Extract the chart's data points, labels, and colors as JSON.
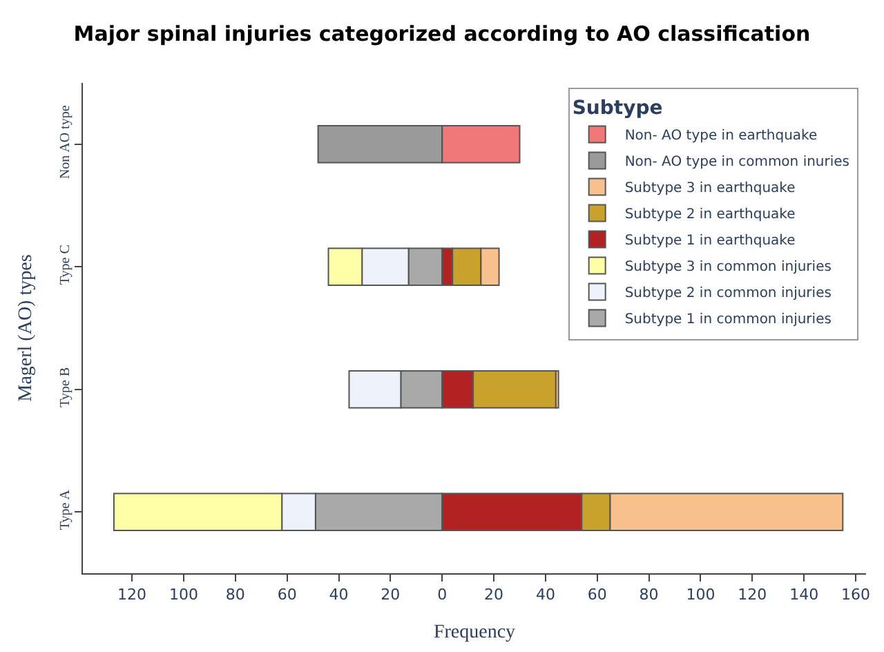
{
  "chart_data": {
    "type": "bar",
    "orientation": "horizontal",
    "stacked": true,
    "title": "Major spinal injuries categorized according to AO classification",
    "xlabel": "Frequency",
    "ylabel": "Magerl (AO) types",
    "legend_title": "Subtype",
    "legend": "top right",
    "categories": [
      "Non AO type",
      "Type C",
      "Type B",
      "Type A"
    ],
    "series": [
      {
        "name": "Subtype 1 in common injuries",
        "color": "#a9a9a9",
        "values": [
          null,
          -13,
          -16,
          -49
        ]
      },
      {
        "name": "Subtype 2 in common injuries",
        "color": "#eef2fb",
        "values": [
          null,
          -18,
          -20,
          -13
        ]
      },
      {
        "name": "Subtype 3 in common injuries",
        "color": "#ffffa8",
        "values": [
          null,
          -13,
          null,
          -65
        ]
      },
      {
        "name": "Subtype 1 in earthquake",
        "color": "#b22222",
        "values": [
          null,
          4,
          12,
          54
        ]
      },
      {
        "name": "Subtype 2 in earthquake",
        "color": "#c8a22c",
        "values": [
          null,
          11,
          32,
          11
        ]
      },
      {
        "name": "Subtype 3 in earthquake",
        "color": "#f8c08c",
        "values": [
          null,
          7,
          1,
          90
        ]
      },
      {
        "name": "Non- AO type in common inuries",
        "color": "#9a9a9a",
        "values": [
          -48,
          null,
          null,
          null
        ]
      },
      {
        "name": "Non- AO type in earthquake",
        "color": "#f07878",
        "values": [
          30,
          null,
          null,
          null
        ]
      }
    ],
    "xlim": [
      -139,
      164
    ],
    "xticks": [
      {
        "value": -120,
        "label": "120"
      },
      {
        "value": -100,
        "label": "100"
      },
      {
        "value": -80,
        "label": "80"
      },
      {
        "value": -60,
        "label": "60"
      },
      {
        "value": -40,
        "label": "40"
      },
      {
        "value": -20,
        "label": "20"
      },
      0,
      20,
      40,
      60,
      80,
      100,
      120,
      140,
      160
    ]
  }
}
